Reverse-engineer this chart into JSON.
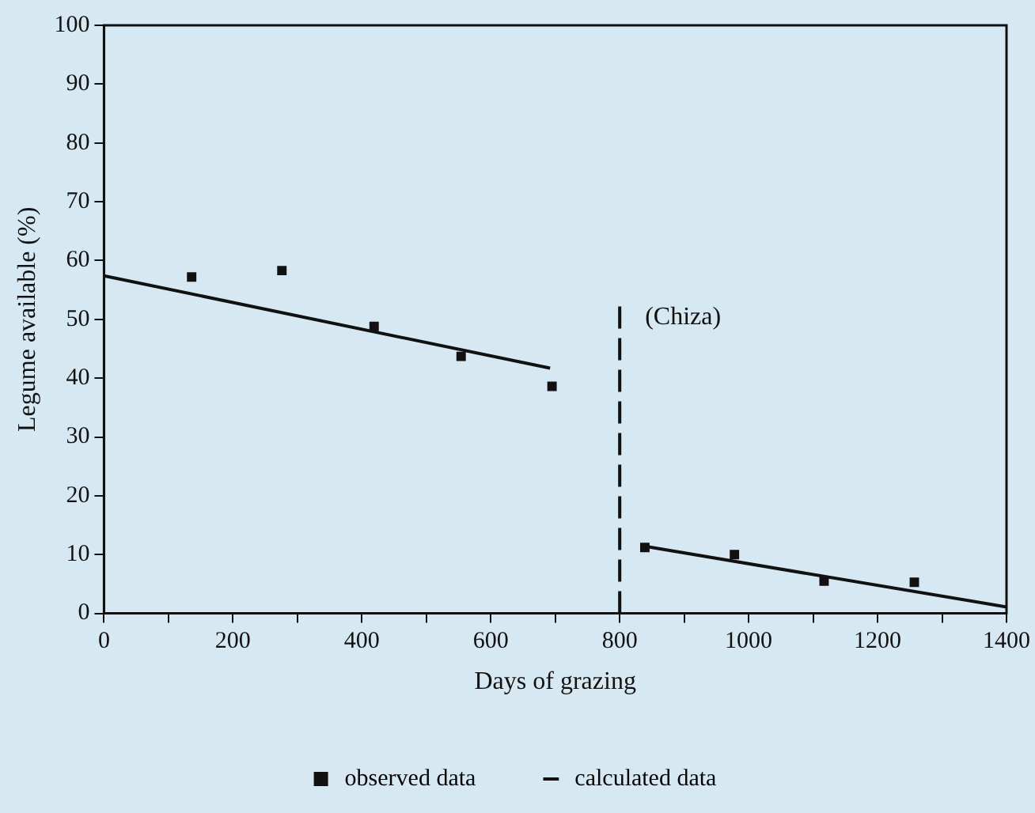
{
  "chart_data": {
    "type": "scatter",
    "xlabel": "Days of grazing",
    "ylabel": "Legume available (%)",
    "xlim": [
      0,
      1400
    ],
    "xticks": [
      0,
      {
        "value": 100,
        "label": null
      },
      200,
      {
        "value": 300,
        "label": null
      },
      400,
      {
        "value": 500,
        "label": null
      },
      600,
      {
        "value": 700,
        "label": null
      },
      800,
      {
        "value": 900,
        "label": null
      },
      1000,
      {
        "value": 1100,
        "label": null
      },
      1200,
      {
        "value": 1300,
        "label": null
      },
      1400
    ],
    "ylim": [
      0,
      100
    ],
    "yticks": [
      0,
      10,
      20,
      30,
      40,
      50,
      60,
      70,
      80,
      90,
      100
    ],
    "series": [
      {
        "name": "observed data",
        "color": "#111111",
        "x": [
          136,
          276,
          419,
          554,
          695,
          839,
          978,
          1117,
          1257
        ],
        "values": [
          57.2,
          58.3,
          48.8,
          43.7,
          38.6,
          11.2,
          10.0,
          5.5,
          5.3
        ],
        "marker": "square"
      },
      {
        "name": "calculated data",
        "type": "line",
        "color": "#111111",
        "x": [
          0,
          692
        ],
        "values": [
          57.4,
          41.7
        ],
        "marker": "none",
        "line_style": "solid"
      },
      {
        "type": "line",
        "color": "#111111",
        "x": [
          839,
          1400
        ],
        "values": [
          11.4,
          1.1
        ],
        "marker": "none",
        "line_style": "solid"
      }
    ],
    "ref_lines": [
      {
        "axis": "x",
        "value": 800,
        "label": "(Chiza)",
        "color": "#111111",
        "line_style": "dashed"
      }
    ],
    "grid": false,
    "legend": "bottom"
  }
}
